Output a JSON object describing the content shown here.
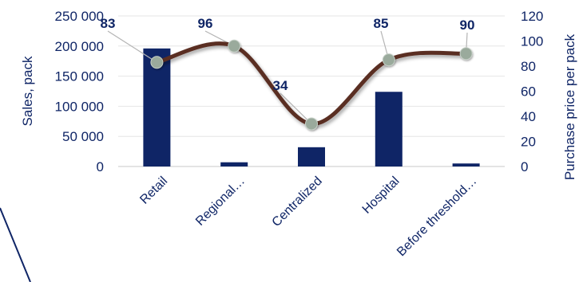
{
  "chart_data": {
    "type": "bar",
    "categories": [
      "Retail",
      "Regional…",
      "Centralized",
      "Hospital",
      "Before threshold…"
    ],
    "series": [
      {
        "name": "Sales, pack",
        "type": "bar",
        "axis": "left",
        "values": [
          196000,
          7000,
          32000,
          124000,
          5000
        ],
        "color": "#0f2566"
      },
      {
        "name": "Purchase price per pack",
        "type": "line",
        "axis": "right",
        "values": [
          83,
          96,
          34,
          85,
          90
        ],
        "data_labels": [
          "83",
          "96",
          "34",
          "85",
          "90"
        ],
        "line_color": "#5a2e24",
        "marker_color": "#9aaa9c"
      }
    ],
    "y_left": {
      "label": "Sales, pack",
      "range": [
        0,
        250000
      ],
      "ticks": [
        "0",
        "50 000",
        "100 000",
        "150 000",
        "200 000",
        "250 000"
      ]
    },
    "y_right": {
      "label": "Purchase price per pack",
      "range": [
        0,
        120
      ],
      "ticks": [
        "0",
        "20",
        "40",
        "60",
        "80",
        "100",
        "120"
      ]
    },
    "grid": true,
    "legend": "none",
    "axis_text_color": "#0f2566"
  }
}
